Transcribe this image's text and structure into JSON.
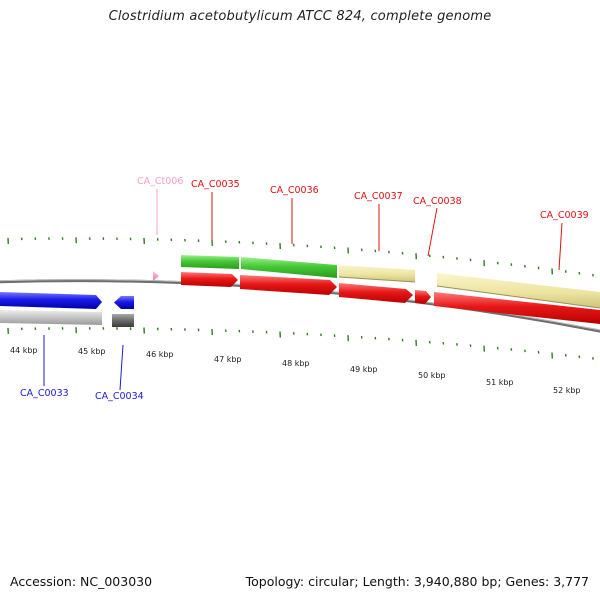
{
  "title": "Clostridium acetobutylicum ATCC 824, complete genome",
  "footer": {
    "accession": "Accession: NC_003030",
    "summary": "Topology: circular; Length: 3,940,880 bp; Genes: 3,777"
  },
  "colors": {
    "forward_cds": "#e01010",
    "forward_other": "#48c838",
    "forward_pseudo": "#ece6a4",
    "reverse_cds": "#1a1ae0",
    "reverse_other": "#bfbfbf",
    "reverse_pseudo": "#6e6e6e",
    "trna": "#f4a0c8",
    "backbone": "#7a7a7a",
    "ticks": "#2e7d1e"
  },
  "scale_labels": [
    "44 kbp",
    "45 kbp",
    "46 kbp",
    "47 kbp",
    "48 kbp",
    "49 kbp",
    "50 kbp",
    "51 kbp",
    "52 kbp"
  ],
  "gene_labels": {
    "forward": [
      "CA_C0035",
      "CA_C0036",
      "CA_C0037",
      "CA_C0038",
      "CA_C0039"
    ],
    "trna": "CA_Ct006",
    "reverse": [
      "CA_C0033",
      "CA_C0034"
    ]
  }
}
